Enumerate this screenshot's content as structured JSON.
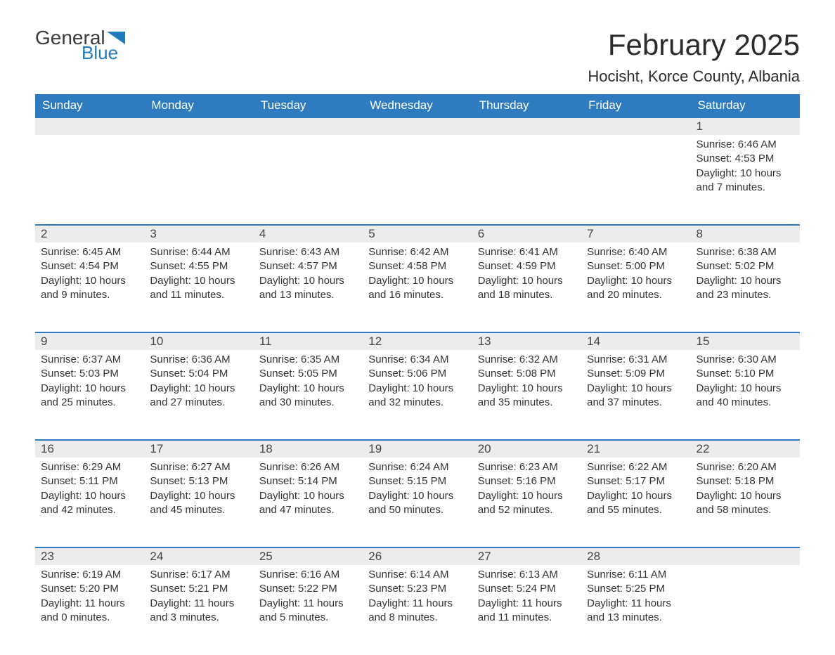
{
  "logo": {
    "text_general": "General",
    "text_blue": "Blue",
    "color_general": "#3a3a3a",
    "color_blue": "#1f7bbf"
  },
  "title": "February 2025",
  "location": "Hocisht, Korce County, Albania",
  "colors": {
    "header_bg": "#2f7bbf",
    "header_text": "#ffffff",
    "daynum_bg": "#ececec",
    "border_top": "#2f7bbf",
    "body_bg": "#ffffff",
    "text": "#333333"
  },
  "typography": {
    "title_fontsize": 42,
    "location_fontsize": 22,
    "header_fontsize": 17,
    "daynum_fontsize": 17,
    "body_fontsize": 15,
    "font_family": "Arial"
  },
  "layout": {
    "columns": 7,
    "rows": 5,
    "first_day_column": 6
  },
  "weekdays": [
    "Sunday",
    "Monday",
    "Tuesday",
    "Wednesday",
    "Thursday",
    "Friday",
    "Saturday"
  ],
  "days": [
    {
      "n": "1",
      "sunrise": "Sunrise: 6:46 AM",
      "sunset": "Sunset: 4:53 PM",
      "daylight": "Daylight: 10 hours and 7 minutes."
    },
    {
      "n": "2",
      "sunrise": "Sunrise: 6:45 AM",
      "sunset": "Sunset: 4:54 PM",
      "daylight": "Daylight: 10 hours and 9 minutes."
    },
    {
      "n": "3",
      "sunrise": "Sunrise: 6:44 AM",
      "sunset": "Sunset: 4:55 PM",
      "daylight": "Daylight: 10 hours and 11 minutes."
    },
    {
      "n": "4",
      "sunrise": "Sunrise: 6:43 AM",
      "sunset": "Sunset: 4:57 PM",
      "daylight": "Daylight: 10 hours and 13 minutes."
    },
    {
      "n": "5",
      "sunrise": "Sunrise: 6:42 AM",
      "sunset": "Sunset: 4:58 PM",
      "daylight": "Daylight: 10 hours and 16 minutes."
    },
    {
      "n": "6",
      "sunrise": "Sunrise: 6:41 AM",
      "sunset": "Sunset: 4:59 PM",
      "daylight": "Daylight: 10 hours and 18 minutes."
    },
    {
      "n": "7",
      "sunrise": "Sunrise: 6:40 AM",
      "sunset": "Sunset: 5:00 PM",
      "daylight": "Daylight: 10 hours and 20 minutes."
    },
    {
      "n": "8",
      "sunrise": "Sunrise: 6:38 AM",
      "sunset": "Sunset: 5:02 PM",
      "daylight": "Daylight: 10 hours and 23 minutes."
    },
    {
      "n": "9",
      "sunrise": "Sunrise: 6:37 AM",
      "sunset": "Sunset: 5:03 PM",
      "daylight": "Daylight: 10 hours and 25 minutes."
    },
    {
      "n": "10",
      "sunrise": "Sunrise: 6:36 AM",
      "sunset": "Sunset: 5:04 PM",
      "daylight": "Daylight: 10 hours and 27 minutes."
    },
    {
      "n": "11",
      "sunrise": "Sunrise: 6:35 AM",
      "sunset": "Sunset: 5:05 PM",
      "daylight": "Daylight: 10 hours and 30 minutes."
    },
    {
      "n": "12",
      "sunrise": "Sunrise: 6:34 AM",
      "sunset": "Sunset: 5:06 PM",
      "daylight": "Daylight: 10 hours and 32 minutes."
    },
    {
      "n": "13",
      "sunrise": "Sunrise: 6:32 AM",
      "sunset": "Sunset: 5:08 PM",
      "daylight": "Daylight: 10 hours and 35 minutes."
    },
    {
      "n": "14",
      "sunrise": "Sunrise: 6:31 AM",
      "sunset": "Sunset: 5:09 PM",
      "daylight": "Daylight: 10 hours and 37 minutes."
    },
    {
      "n": "15",
      "sunrise": "Sunrise: 6:30 AM",
      "sunset": "Sunset: 5:10 PM",
      "daylight": "Daylight: 10 hours and 40 minutes."
    },
    {
      "n": "16",
      "sunrise": "Sunrise: 6:29 AM",
      "sunset": "Sunset: 5:11 PM",
      "daylight": "Daylight: 10 hours and 42 minutes."
    },
    {
      "n": "17",
      "sunrise": "Sunrise: 6:27 AM",
      "sunset": "Sunset: 5:13 PM",
      "daylight": "Daylight: 10 hours and 45 minutes."
    },
    {
      "n": "18",
      "sunrise": "Sunrise: 6:26 AM",
      "sunset": "Sunset: 5:14 PM",
      "daylight": "Daylight: 10 hours and 47 minutes."
    },
    {
      "n": "19",
      "sunrise": "Sunrise: 6:24 AM",
      "sunset": "Sunset: 5:15 PM",
      "daylight": "Daylight: 10 hours and 50 minutes."
    },
    {
      "n": "20",
      "sunrise": "Sunrise: 6:23 AM",
      "sunset": "Sunset: 5:16 PM",
      "daylight": "Daylight: 10 hours and 52 minutes."
    },
    {
      "n": "21",
      "sunrise": "Sunrise: 6:22 AM",
      "sunset": "Sunset: 5:17 PM",
      "daylight": "Daylight: 10 hours and 55 minutes."
    },
    {
      "n": "22",
      "sunrise": "Sunrise: 6:20 AM",
      "sunset": "Sunset: 5:18 PM",
      "daylight": "Daylight: 10 hours and 58 minutes."
    },
    {
      "n": "23",
      "sunrise": "Sunrise: 6:19 AM",
      "sunset": "Sunset: 5:20 PM",
      "daylight": "Daylight: 11 hours and 0 minutes."
    },
    {
      "n": "24",
      "sunrise": "Sunrise: 6:17 AM",
      "sunset": "Sunset: 5:21 PM",
      "daylight": "Daylight: 11 hours and 3 minutes."
    },
    {
      "n": "25",
      "sunrise": "Sunrise: 6:16 AM",
      "sunset": "Sunset: 5:22 PM",
      "daylight": "Daylight: 11 hours and 5 minutes."
    },
    {
      "n": "26",
      "sunrise": "Sunrise: 6:14 AM",
      "sunset": "Sunset: 5:23 PM",
      "daylight": "Daylight: 11 hours and 8 minutes."
    },
    {
      "n": "27",
      "sunrise": "Sunrise: 6:13 AM",
      "sunset": "Sunset: 5:24 PM",
      "daylight": "Daylight: 11 hours and 11 minutes."
    },
    {
      "n": "28",
      "sunrise": "Sunrise: 6:11 AM",
      "sunset": "Sunset: 5:25 PM",
      "daylight": "Daylight: 11 hours and 13 minutes."
    }
  ]
}
